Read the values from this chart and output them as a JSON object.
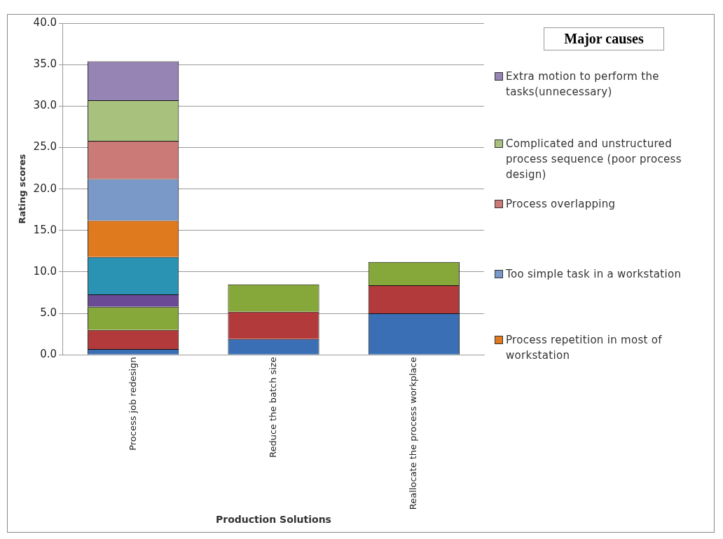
{
  "chart_data": {
    "type": "bar",
    "stacked": true,
    "xlabel": "Production Solutions",
    "ylabel": "Rating scores",
    "legend_title": "Major causes",
    "legend": "right",
    "grid": "y",
    "categories": [
      "Process job redesign",
      "Reduce the batch size",
      "Reallocate the process workplace"
    ],
    "ylim": [
      0,
      40
    ],
    "yticks": [
      {
        "value": 0,
        "label": "0.0"
      },
      {
        "value": 5,
        "label": "5.0"
      },
      {
        "value": 10,
        "label": "10.0"
      },
      {
        "value": 15,
        "label": "15.0"
      },
      {
        "value": 20,
        "label": "20.0"
      },
      {
        "value": 25,
        "label": "25.0"
      },
      {
        "value": 30,
        "label": "30.0"
      },
      {
        "value": 35,
        "label": "35.0"
      },
      {
        "value": 40,
        "label": "40.0"
      }
    ],
    "series": [
      {
        "color": "#3a6fb5",
        "values": [
          0.7,
          1.9,
          5.0
        ]
      },
      {
        "color": "#b33a3a",
        "values": [
          2.3,
          3.3,
          3.4
        ]
      },
      {
        "color": "#86a83a",
        "values": [
          2.8,
          3.3,
          2.8
        ]
      },
      {
        "color": "#6a4a94",
        "values": [
          1.5,
          null,
          null
        ]
      },
      {
        "color": "#2a93b3",
        "values": [
          4.5,
          null,
          null
        ]
      },
      {
        "name": "Process repetition in most of workstation",
        "color": "#e07a1e",
        "values": [
          4.4,
          null,
          null
        ]
      },
      {
        "name": "Too simple task in a workstation",
        "color": "#7b99c8",
        "values": [
          5.0,
          null,
          null
        ]
      },
      {
        "name": "Process overlapping",
        "color": "#cc7a78",
        "values": [
          4.6,
          null,
          null
        ]
      },
      {
        "name": "Complicated and unstructured process sequence (poor process design)",
        "color": "#a8c27e",
        "values": [
          4.9,
          null,
          null
        ]
      },
      {
        "name": "Extra motion to perform the tasks(unnecessary)",
        "color": "#9584b4",
        "values": [
          4.7,
          null,
          null
        ]
      }
    ]
  }
}
